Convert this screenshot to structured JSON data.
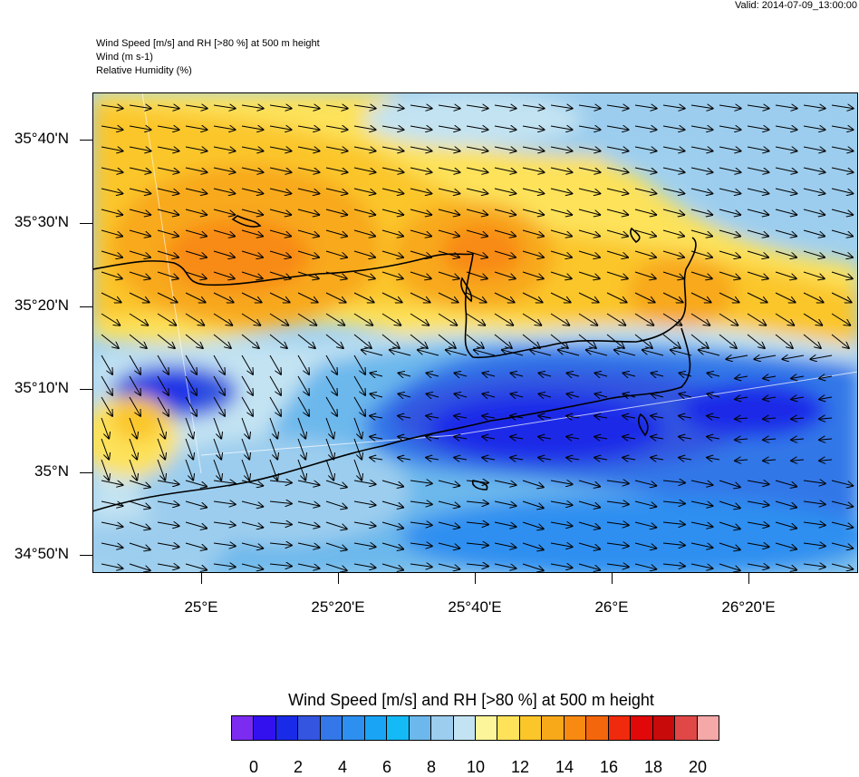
{
  "valid": "Valid: 2014-07-09_13:00:00",
  "titles": [
    "Wind Speed [m/s] and RH [>80 %] at 500 m height",
    "Wind   (m s-1)",
    "Relative Humidity    (%)"
  ],
  "lat_labels": [
    "35°40'N",
    "35°30'N",
    "35°20'N",
    "35°10'N",
    "35°N",
    "34°50'N"
  ],
  "lon_labels": [
    "25°E",
    "25°20'E",
    "25°40'E",
    "26°E",
    "26°20'E"
  ],
  "colorbar": {
    "title": "Wind Speed [m/s] and RH [>80 %] at 500 m height",
    "labels": [
      "0",
      "2",
      "4",
      "6",
      "8",
      "10",
      "12",
      "14",
      "16",
      "18",
      "20"
    ],
    "colors": [
      "#7b2cf0",
      "#3311ee",
      "#1a2be8",
      "#3355e0",
      "#3377e8",
      "#2d8ff0",
      "#1aa4f5",
      "#14baf5",
      "#6cb8ec",
      "#9ccdee",
      "#c3e3f2",
      "#fdf59a",
      "#fde25a",
      "#fbc62a",
      "#f8a91a",
      "#f88a12",
      "#f4660c",
      "#f02a0c",
      "#e00808",
      "#c80a0a",
      "#e04848",
      "#f4a8a8"
    ]
  }
}
